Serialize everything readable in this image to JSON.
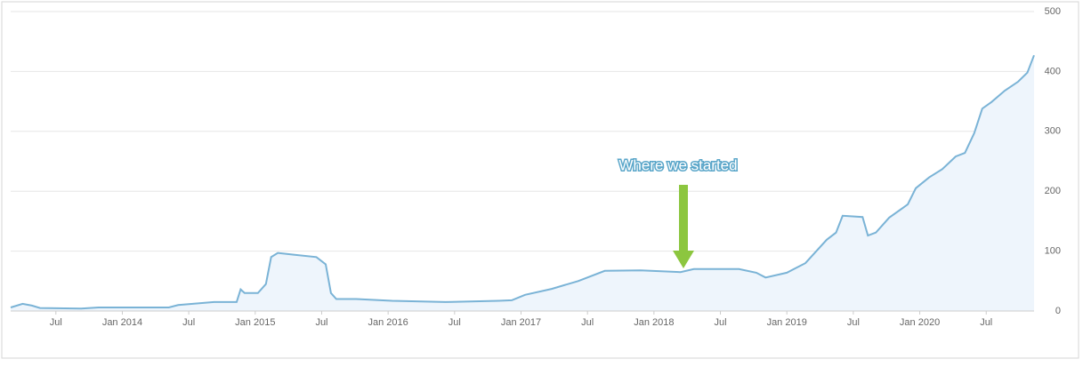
{
  "chart_data": {
    "type": "area",
    "annotation": "Where we started",
    "x": [
      2013.16,
      2013.25,
      2013.32,
      2013.38,
      2013.69,
      2013.82,
      2014.35,
      2014.42,
      2014.69,
      2014.86,
      2014.89,
      2014.92,
      2015.02,
      2015.08,
      2015.12,
      2015.17,
      2015.29,
      2015.46,
      2015.53,
      2015.57,
      2015.61,
      2015.76,
      2016.03,
      2016.43,
      2016.83,
      2016.93,
      2017.03,
      2017.23,
      2017.43,
      2017.63,
      2017.9,
      2018.2,
      2018.3,
      2018.64,
      2018.77,
      2018.84,
      2019.0,
      2019.14,
      2019.3,
      2019.37,
      2019.42,
      2019.57,
      2019.61,
      2019.67,
      2019.77,
      2019.91,
      2019.97,
      2020.07,
      2020.17,
      2020.27,
      2020.34,
      2020.41,
      2020.47,
      2020.54,
      2020.64,
      2020.74,
      2020.81,
      2020.86
    ],
    "values": [
      6,
      12,
      9,
      5,
      4,
      6,
      6,
      10,
      15,
      15,
      36,
      30,
      30,
      45,
      90,
      97,
      94,
      90,
      78,
      30,
      20,
      20,
      17,
      15,
      17,
      18,
      27,
      37,
      50,
      67,
      68,
      65,
      70,
      70,
      64,
      56,
      64,
      80,
      119,
      131,
      159,
      157,
      126,
      131,
      156,
      178,
      205,
      223,
      237,
      258,
      264,
      297,
      338,
      349,
      368,
      383,
      398,
      427
    ],
    "color": "#7ab3d6",
    "fill": "#eef5fc",
    "xlim": [
      2013.16,
      2020.86
    ],
    "xticks": [
      {
        "value": 2013.5,
        "label": "Jul"
      },
      {
        "value": 2014,
        "label": "Jan 2014"
      },
      {
        "value": 2014.5,
        "label": "Jul"
      },
      {
        "value": 2015,
        "label": "Jan 2015"
      },
      {
        "value": 2015.5,
        "label": "Jul"
      },
      {
        "value": 2016,
        "label": "Jan 2016"
      },
      {
        "value": 2016.5,
        "label": "Jul"
      },
      {
        "value": 2017,
        "label": "Jan 2017"
      },
      {
        "value": 2017.5,
        "label": "Jul"
      },
      {
        "value": 2018,
        "label": "Jan 2018"
      },
      {
        "value": 2018.5,
        "label": "Jul"
      },
      {
        "value": 2019,
        "label": "Jan 2019"
      },
      {
        "value": 2019.5,
        "label": "Jul"
      },
      {
        "value": 2020,
        "label": "Jan 2020"
      },
      {
        "value": 2020.5,
        "label": "Jul"
      }
    ],
    "ylim": [
      0,
      500
    ],
    "yticks": [
      0,
      100,
      200,
      300,
      400,
      500
    ],
    "grid": true
  }
}
